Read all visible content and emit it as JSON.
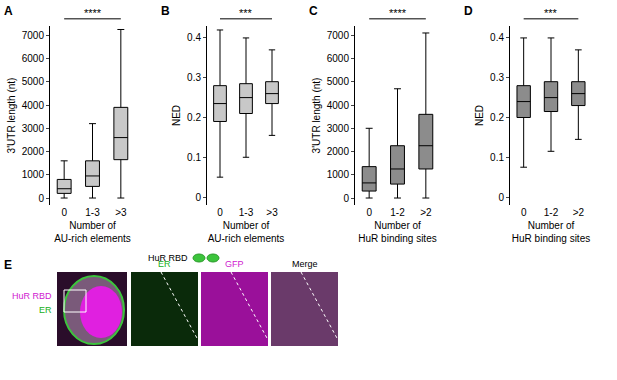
{
  "chart_data": [
    {
      "panel": "A",
      "type": "box",
      "y_label": "3'UTR length (nt)",
      "x_label": "Number of\nAU-rich elements",
      "categories": [
        "0",
        "1-3",
        ">3"
      ],
      "lowerfence": [
        0,
        0,
        0
      ],
      "q1": [
        200,
        500,
        1650
      ],
      "median": [
        400,
        950,
        2600
      ],
      "q3": [
        800,
        1600,
        3900
      ],
      "upperfence": [
        1600,
        3200,
        7250
      ],
      "color": "#c8c8c8",
      "ylim": [
        -300,
        7400
      ],
      "yticks": [
        0,
        1000,
        2000,
        3000,
        4000,
        5000,
        6000,
        7000
      ],
      "annotations": [
        "****"
      ]
    },
    {
      "panel": "B",
      "type": "box",
      "y_label": "NED",
      "x_label": "Number of\nAU-rich elements",
      "categories": [
        "0",
        "1-3",
        ">3"
      ],
      "lowerfence": [
        0.05,
        0.1,
        0.155
      ],
      "q1": [
        0.19,
        0.21,
        0.235
      ],
      "median": [
        0.235,
        0.25,
        0.26
      ],
      "q3": [
        0.28,
        0.285,
        0.29
      ],
      "upperfence": [
        0.42,
        0.4,
        0.37
      ],
      "color": "#c8c8c8",
      "ylim": [
        -0.02,
        0.43
      ],
      "yticks": [
        0,
        0.1,
        0.2,
        0.3,
        0.4
      ],
      "annotations": [
        "***"
      ]
    },
    {
      "panel": "C",
      "type": "box",
      "y_label": "3'UTR length (nt)",
      "x_label": "Number of\nHuR binding sites",
      "categories": [
        "0",
        "1-2",
        ">2"
      ],
      "lowerfence": [
        0,
        0,
        0
      ],
      "q1": [
        300,
        600,
        1250
      ],
      "median": [
        650,
        1250,
        2250
      ],
      "q3": [
        1350,
        2250,
        3600
      ],
      "upperfence": [
        3000,
        4700,
        7100
      ],
      "color": "#8c8c8c",
      "ylim": [
        -300,
        7400
      ],
      "yticks": [
        0,
        1000,
        2000,
        3000,
        4000,
        5000,
        6000,
        7000
      ],
      "annotations": [
        "****"
      ]
    },
    {
      "panel": "D",
      "type": "box",
      "y_label": "NED",
      "x_label": "Number of\nHuR binding sites",
      "categories": [
        "0",
        "1-2",
        ">2"
      ],
      "lowerfence": [
        0.075,
        0.115,
        0.145
      ],
      "q1": [
        0.2,
        0.215,
        0.23
      ],
      "median": [
        0.24,
        0.25,
        0.26
      ],
      "q3": [
        0.28,
        0.29,
        0.29
      ],
      "upperfence": [
        0.4,
        0.4,
        0.37
      ],
      "color": "#8c8c8c",
      "ylim": [
        -0.02,
        0.43
      ],
      "yticks": [
        0,
        0.1,
        0.2,
        0.3,
        0.4
      ],
      "annotations": [
        "***"
      ]
    }
  ],
  "panel_e": {
    "label": "E",
    "construct": "HuR RBD",
    "row_labels": [
      {
        "text": "HuR RBD",
        "color": "#d020d0"
      },
      {
        "text": "ER",
        "color": "#20b020"
      }
    ],
    "tiles": [
      {
        "text": "ER",
        "color": "#20b020"
      },
      {
        "text": "GFP",
        "color": "#d020d0"
      },
      {
        "text": "Merge",
        "color": "#000000"
      }
    ]
  }
}
